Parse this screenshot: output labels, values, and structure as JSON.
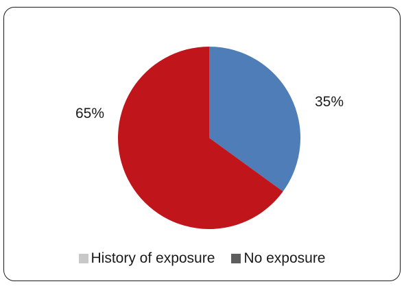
{
  "chart_data": {
    "type": "pie",
    "title": "",
    "slices": [
      {
        "name": "History of exposure",
        "value": 35,
        "label": "35%",
        "color": "#4f7db8",
        "legend_color": "#c8c8c8"
      },
      {
        "name": "No exposure",
        "value": 65,
        "label": "65%",
        "color": "#c0151b",
        "legend_color": "#5e5e5e"
      }
    ],
    "legend_placement": "bottom",
    "start_angle_deg": 0,
    "direction": "clockwise"
  }
}
